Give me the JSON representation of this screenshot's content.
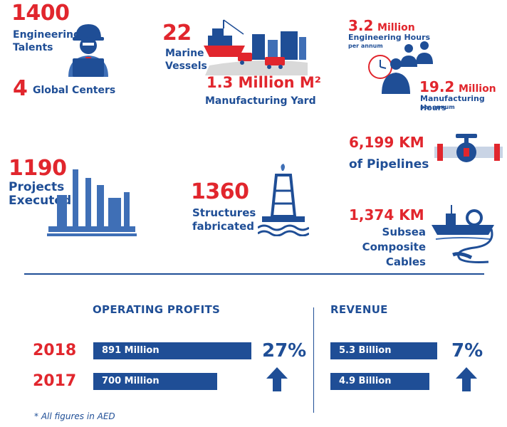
{
  "stats": {
    "engineering_talents": {
      "value": "1400",
      "label_line1": "Engineering",
      "label_line2": "Talents"
    },
    "global_centers": {
      "value": "4",
      "label": "Global Centers"
    },
    "marine_vessels": {
      "value": "22",
      "label_line1": "Marine",
      "label_line2": "Vessels"
    },
    "manufacturing_yard": {
      "value": "1.3 Million M²",
      "label": "Manufacturing Yard"
    },
    "engineering_hours": {
      "value": "3.2",
      "unit": "Million",
      "label": "Engineering Hours",
      "sub": "per annum"
    },
    "manufacturing_hours": {
      "value": "19.2",
      "unit": "Million",
      "label": "Manufacturing Hours",
      "sub": "per annum"
    },
    "projects_executed": {
      "value": "1190",
      "label_line1": "Projects",
      "label_line2": "Executed"
    },
    "structures_fabricated": {
      "value": "1360",
      "label_line1": "Structures",
      "label_line2": "fabricated"
    },
    "pipelines": {
      "value": "6,199 KM",
      "label": "of Pipelines"
    },
    "subsea_cables": {
      "value": "1,374 KM",
      "label_line1": "Subsea",
      "label_line2": "Composite",
      "label_line3": "Cables"
    }
  },
  "financials": {
    "operating_profits": {
      "title": "OPERATING PROFITS",
      "bars": [
        {
          "year": "2018",
          "label": "891 Million",
          "value": 891
        },
        {
          "year": "2017",
          "label": "700 Million",
          "value": 700
        }
      ],
      "growth": "27%"
    },
    "revenue": {
      "title": "REVENUE",
      "bars": [
        {
          "label": "5.3 Billion",
          "value": 5.3
        },
        {
          "label": "4.9 Billion",
          "value": 4.9
        }
      ],
      "growth": "7%"
    }
  },
  "footnote": "* All figures in AED",
  "colors": {
    "brand_blue": "#1f4e96",
    "accent_red": "#e1262d",
    "light_blue": "#3f6fb6"
  }
}
